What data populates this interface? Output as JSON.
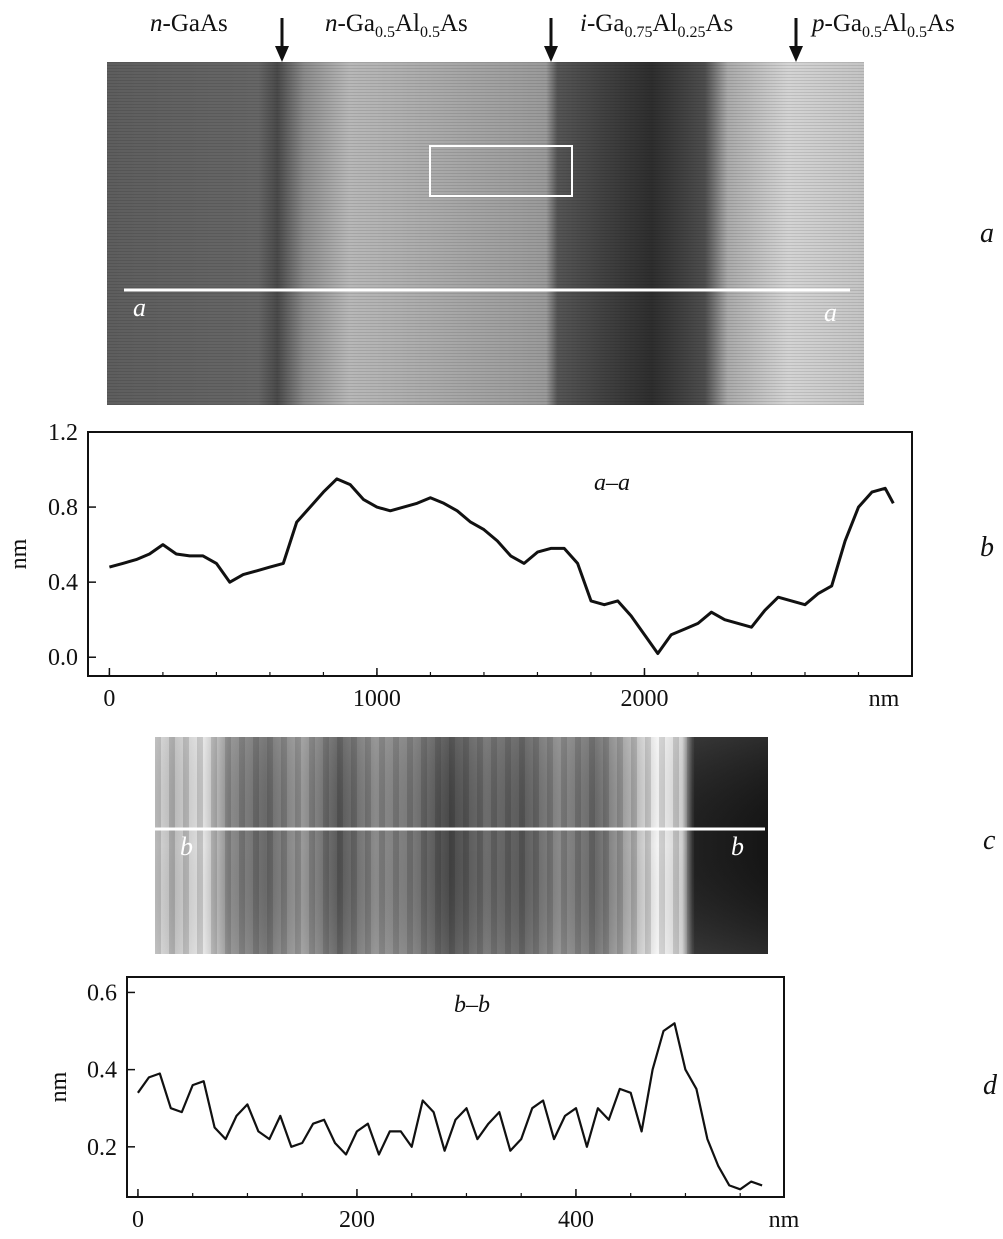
{
  "layers": [
    {
      "prefix": "n",
      "text": "-GaAs"
    },
    {
      "prefix": "n",
      "text": "-Ga0.5Al0.5As"
    },
    {
      "prefix": "i",
      "text": "-Ga0.75Al0.25As"
    },
    {
      "prefix": "p",
      "text": "-Ga0.5Al0.5As"
    }
  ],
  "panels": {
    "a": "a",
    "b": "b",
    "c": "c",
    "d": "d"
  },
  "image_a": {
    "line_marker_left": "a",
    "line_marker_right": "a"
  },
  "image_c": {
    "line_marker_left": "b",
    "line_marker_right": "b"
  },
  "chart_data": [
    {
      "type": "line",
      "panel": "b",
      "title": "",
      "annotation": "a–a",
      "xlabel": "nm",
      "ylabel": "nm",
      "xlim": [
        -80,
        3000
      ],
      "ylim": [
        -0.1,
        1.2
      ],
      "xticks": [
        0,
        1000,
        2000
      ],
      "yticks": [
        0.0,
        0.4,
        0.8,
        1.2
      ],
      "ytick_labels": [
        "0.0",
        "0.4",
        "0.8",
        "1.2"
      ],
      "series": [
        {
          "x": [
            0,
            50,
            100,
            150,
            200,
            250,
            300,
            350,
            400,
            450,
            500,
            550,
            600,
            650,
            700,
            750,
            800,
            850,
            900,
            950,
            1000,
            1050,
            1100,
            1150,
            1200,
            1250,
            1300,
            1350,
            1400,
            1450,
            1500,
            1550,
            1600,
            1650,
            1700,
            1750,
            1800,
            1850,
            1900,
            1950,
            2000,
            2050,
            2100,
            2150,
            2200,
            2250,
            2300,
            2350,
            2400,
            2450,
            2500,
            2550,
            2600,
            2650,
            2700,
            2750,
            2800,
            2850,
            2900,
            2930
          ],
          "y": [
            0.48,
            0.5,
            0.52,
            0.55,
            0.6,
            0.55,
            0.54,
            0.54,
            0.5,
            0.4,
            0.44,
            0.46,
            0.48,
            0.5,
            0.72,
            0.8,
            0.88,
            0.95,
            0.92,
            0.84,
            0.8,
            0.78,
            0.8,
            0.82,
            0.85,
            0.82,
            0.78,
            0.72,
            0.68,
            0.62,
            0.54,
            0.5,
            0.56,
            0.58,
            0.58,
            0.5,
            0.3,
            0.28,
            0.3,
            0.22,
            0.12,
            0.02,
            0.12,
            0.15,
            0.18,
            0.24,
            0.2,
            0.18,
            0.16,
            0.25,
            0.32,
            0.3,
            0.28,
            0.34,
            0.38,
            0.62,
            0.8,
            0.88,
            0.9,
            0.82
          ]
        }
      ]
    },
    {
      "type": "line",
      "panel": "d",
      "title": "",
      "annotation": "b–b",
      "xlabel": "nm",
      "ylabel": "nm",
      "xlim": [
        -10,
        590
      ],
      "ylim": [
        0.07,
        0.64
      ],
      "xticks": [
        0,
        200,
        400
      ],
      "yticks": [
        0.2,
        0.4,
        0.6
      ],
      "ytick_labels": [
        "0.2",
        "0.4",
        "0.6"
      ],
      "series": [
        {
          "x": [
            0,
            10,
            20,
            30,
            40,
            50,
            60,
            70,
            80,
            90,
            100,
            110,
            120,
            130,
            140,
            150,
            160,
            170,
            180,
            190,
            200,
            210,
            220,
            230,
            240,
            250,
            260,
            270,
            280,
            290,
            300,
            310,
            320,
            330,
            340,
            350,
            360,
            370,
            380,
            390,
            400,
            410,
            420,
            430,
            440,
            450,
            460,
            470,
            480,
            490,
            500,
            510,
            520,
            530,
            540,
            550,
            560,
            570
          ],
          "y": [
            0.34,
            0.38,
            0.39,
            0.3,
            0.29,
            0.36,
            0.37,
            0.25,
            0.22,
            0.28,
            0.31,
            0.24,
            0.22,
            0.28,
            0.2,
            0.21,
            0.26,
            0.27,
            0.21,
            0.18,
            0.24,
            0.26,
            0.18,
            0.24,
            0.24,
            0.2,
            0.32,
            0.29,
            0.19,
            0.27,
            0.3,
            0.22,
            0.26,
            0.29,
            0.19,
            0.22,
            0.3,
            0.32,
            0.22,
            0.28,
            0.3,
            0.2,
            0.3,
            0.27,
            0.35,
            0.34,
            0.24,
            0.4,
            0.5,
            0.52,
            0.4,
            0.35,
            0.22,
            0.15,
            0.1,
            0.09,
            0.11,
            0.1
          ]
        }
      ]
    }
  ]
}
